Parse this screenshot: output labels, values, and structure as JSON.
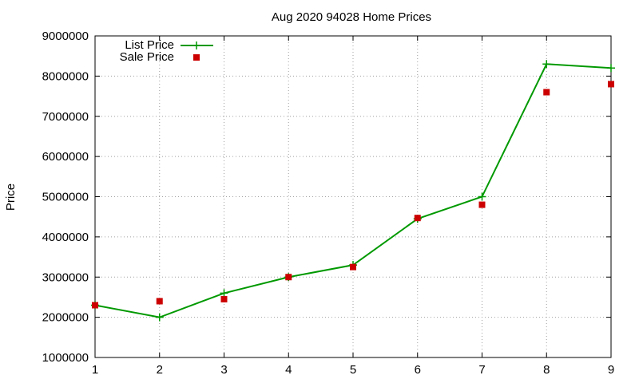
{
  "chart_data": {
    "type": "line",
    "title": "Aug 2020 94028 Home Prices",
    "xlabel": "",
    "ylabel": "Price",
    "xlim": [
      1,
      9
    ],
    "ylim": [
      1000000,
      9000000
    ],
    "x_ticks": [
      "1",
      "2",
      "3",
      "4",
      "5",
      "6",
      "7",
      "8",
      "9"
    ],
    "y_ticks": [
      "1000000",
      "2000000",
      "3000000",
      "4000000",
      "5000000",
      "6000000",
      "7000000",
      "8000000",
      "9000000"
    ],
    "grid": true,
    "legend_position": "top-left",
    "x": [
      1,
      2,
      3,
      4,
      5,
      6,
      7,
      8,
      9
    ],
    "series": [
      {
        "name": "List Price",
        "style": "line-with-plus-markers",
        "color": "#009900",
        "values": [
          2300000,
          2000000,
          2600000,
          3000000,
          3300000,
          4450000,
          5000000,
          8300000,
          8200000
        ]
      },
      {
        "name": "Sale Price",
        "style": "square-markers",
        "color": "#cc0000",
        "values": [
          2300000,
          2400000,
          2450000,
          3000000,
          3250000,
          4470000,
          4800000,
          7600000,
          7800000
        ]
      }
    ]
  }
}
